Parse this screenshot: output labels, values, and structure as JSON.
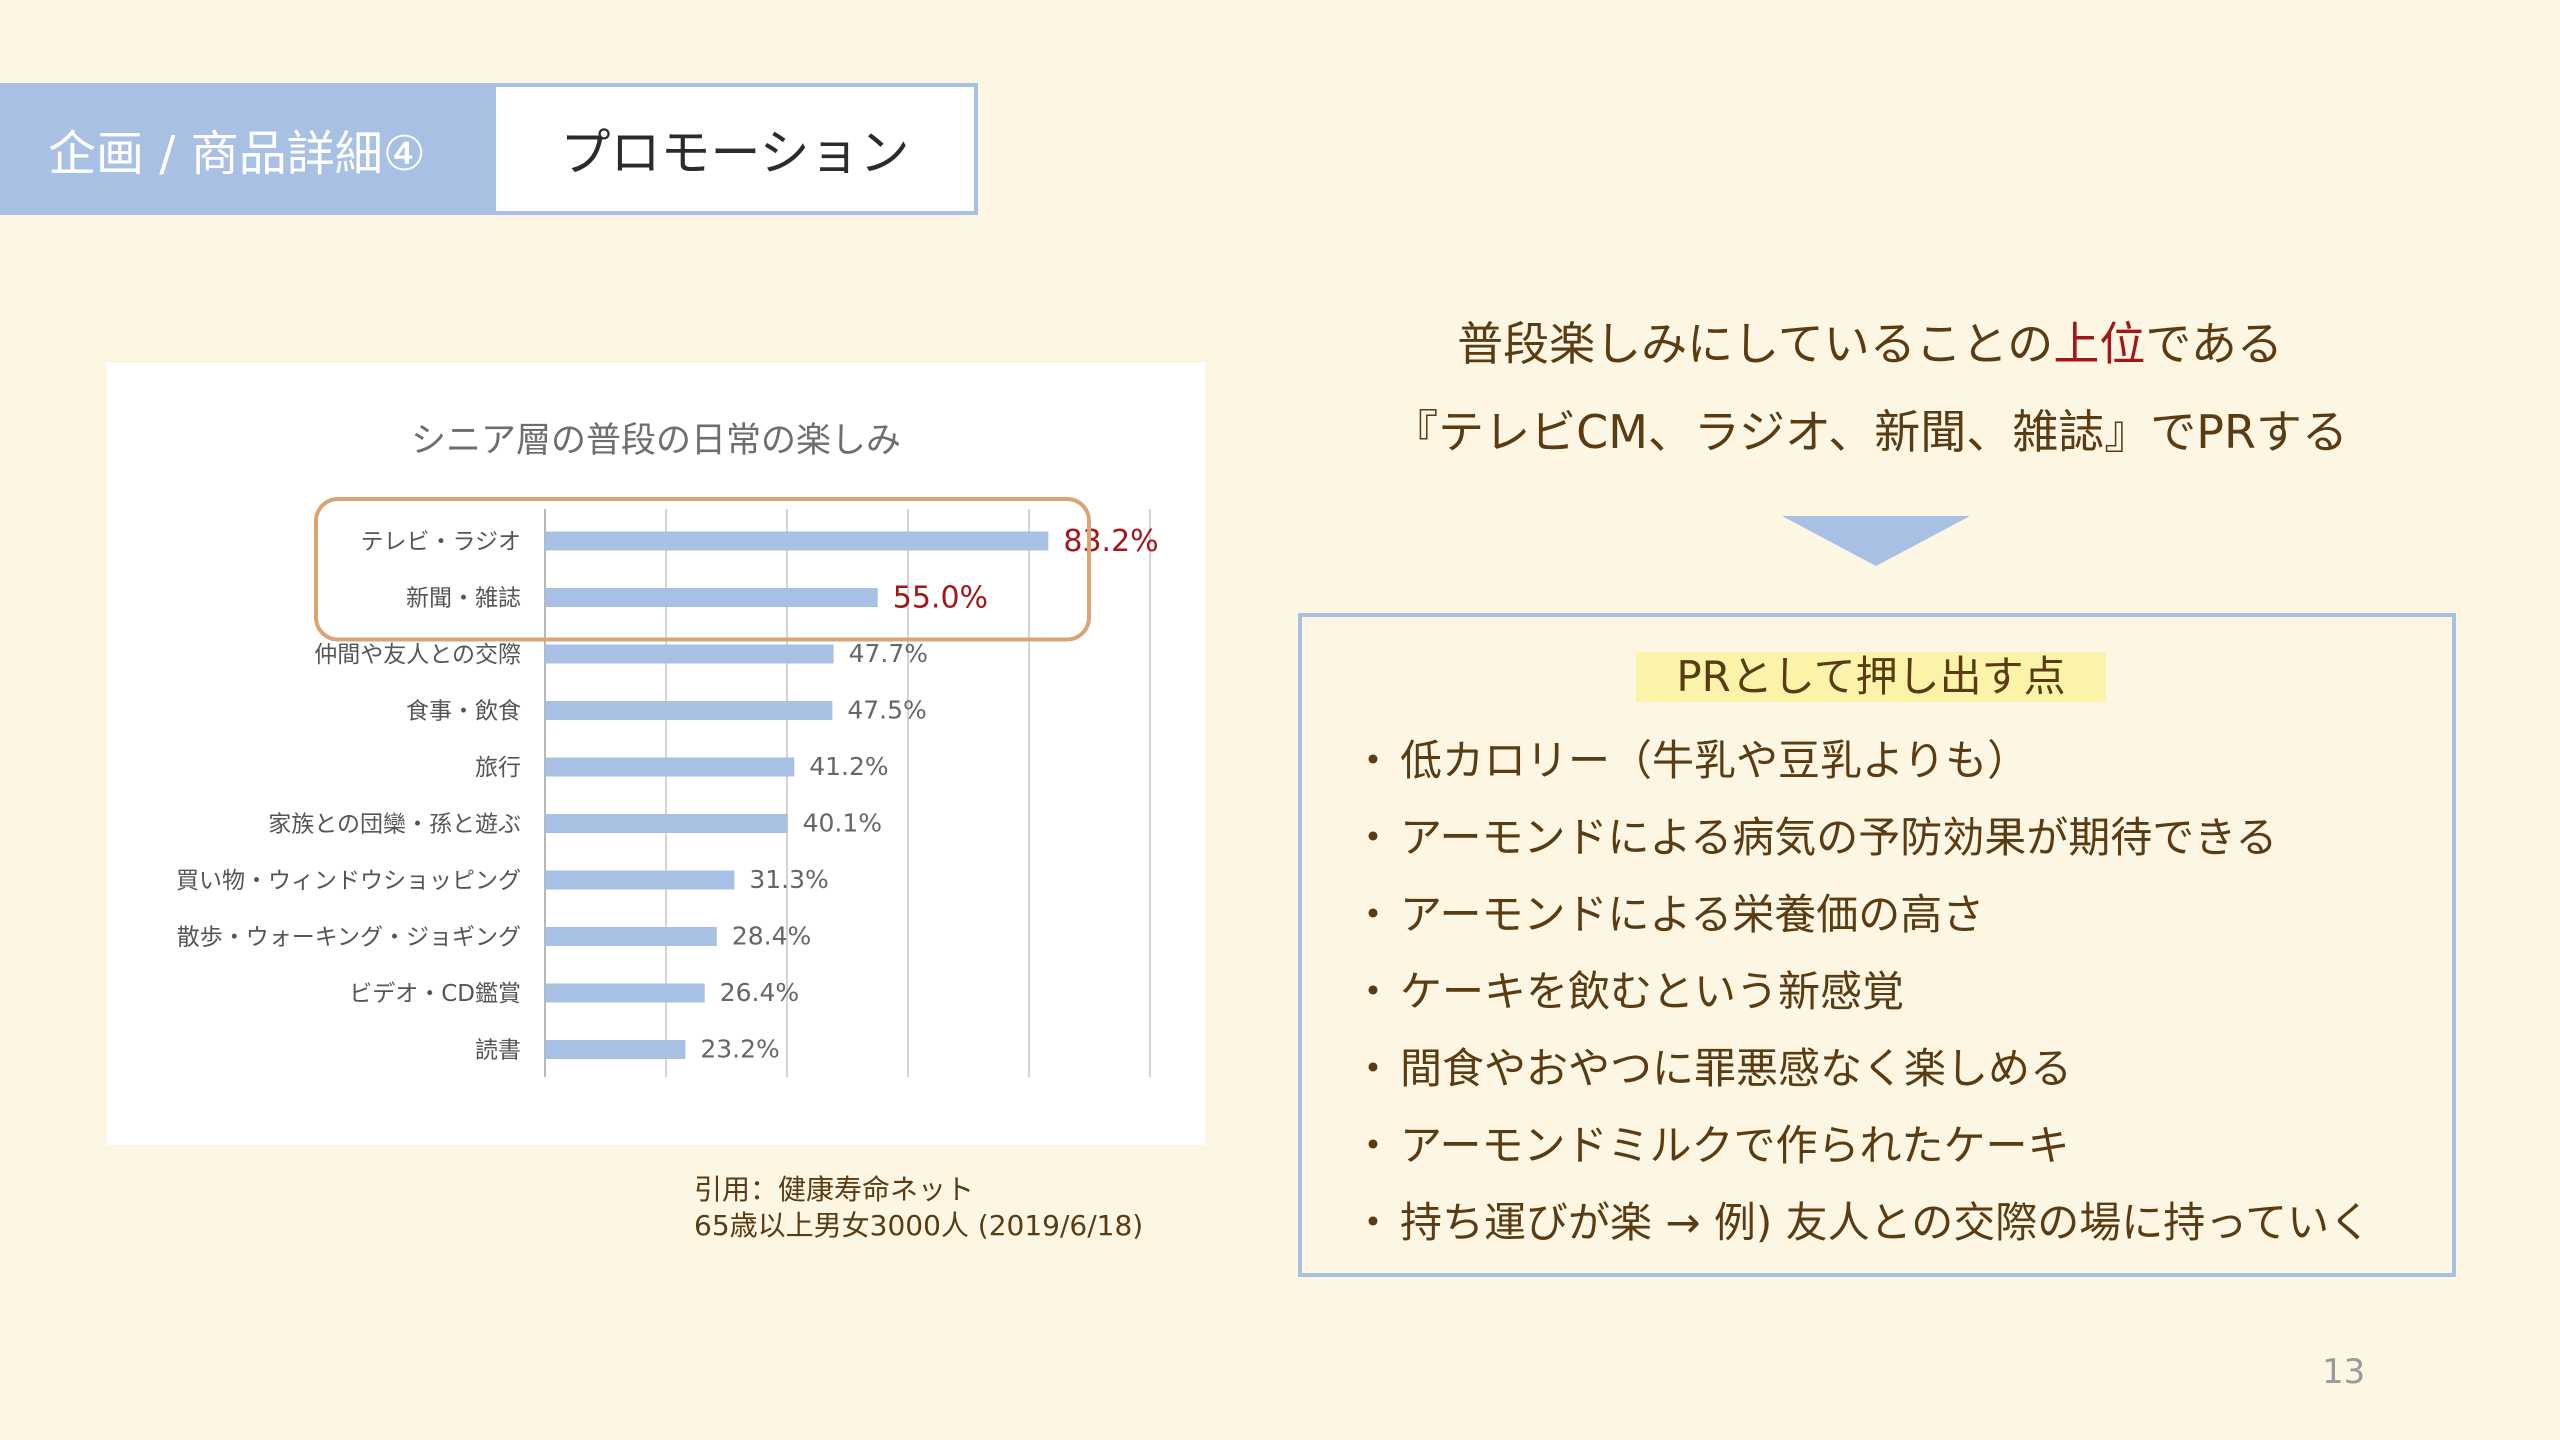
{
  "header": {
    "section": "企画 / 商品詳細④",
    "topic": "プロモーション"
  },
  "chart_data": {
    "type": "bar",
    "orientation": "horizontal",
    "title": "シニア層の普段の日常の楽しみ",
    "categories": [
      "テレビ・ラジオ",
      "新聞・雑誌",
      "仲間や友人との交際",
      "食事・飲食",
      "旅行",
      "家族との団欒・孫と遊ぶ",
      "買い物・ウィンドウショッピング",
      "散歩・ウォーキング・ジョギング",
      "ビデオ・CD鑑賞",
      "読書"
    ],
    "values": [
      83.2,
      55.0,
      47.7,
      47.5,
      41.2,
      40.1,
      31.3,
      28.4,
      26.4,
      23.2
    ],
    "value_labels": [
      "83.2%",
      "55.0%",
      "47.7%",
      "47.5%",
      "41.2%",
      "40.1%",
      "31.3%",
      "28.4%",
      "26.4%",
      "23.2%"
    ],
    "highlighted": [
      0,
      1
    ],
    "xlim": [
      0,
      100
    ],
    "grid": true,
    "bar_color": "#a8c0e4",
    "highlight_label_color": "#a3171b",
    "highlight_box_color": "#d9a574"
  },
  "citation": {
    "line1": "引用：健康寿命ネット",
    "line2": "65歳以上男女3000人 (2019/6/18)"
  },
  "headline": {
    "line1_pre": "普段楽しみにしていることの",
    "line1_highlight": "上位",
    "line1_post": "である",
    "line2": "『テレビCM、ラジオ、新聞、雑誌』でPRする"
  },
  "pr": {
    "title": "PRとして押し出す点",
    "bullet": "・",
    "points": [
      "低カロリー（牛乳や豆乳よりも）",
      "アーモンドによる病気の予防効果が期待できる",
      "アーモンドによる栄養価の高さ",
      "ケーキを飲むという新感覚",
      "間食やおやつに罪悪感なく楽しめる",
      "アーモンドミルクで作られたケーキ",
      "持ち運びが楽 → 例) 友人との交際の場に持っていく"
    ]
  },
  "page_number": "13",
  "colors": {
    "background": "#fdf6e3",
    "accent_blue": "#a8c0e4",
    "text_brown": "#5a3b12",
    "highlight_red": "#a3171b",
    "marker_yellow": "#fbf3a8"
  }
}
